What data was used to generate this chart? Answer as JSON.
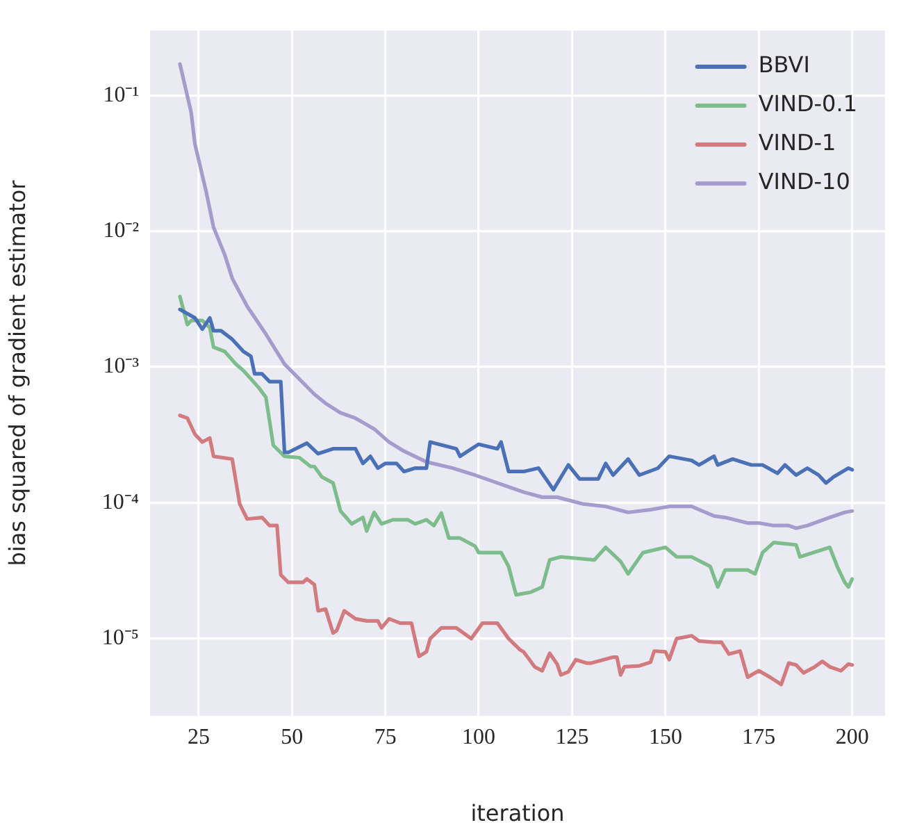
{
  "chart_data": {
    "type": "line",
    "xlabel": "iteration",
    "ylabel": "bias squared of gradient estimator",
    "log": "y",
    "grid": true,
    "legend": "top right",
    "line_style": "solid",
    "xlim": [
      12,
      208.8
    ],
    "xticks": [
      25,
      50,
      75,
      100,
      125,
      150,
      175,
      200
    ],
    "ylim": [
      2.7e-06,
      0.3
    ],
    "yticks": [
      {
        "value": 1e-05,
        "label": "10⁻⁵"
      },
      {
        "value": 0.0001,
        "label": "10⁻⁴"
      },
      {
        "value": 0.001,
        "label": "10⁻³"
      },
      {
        "value": 0.01,
        "label": "10⁻²"
      },
      {
        "value": 0.1,
        "label": "10⁻¹"
      }
    ],
    "series": [
      {
        "name": "BBVI",
        "color": "#4a70b5",
        "x": [
          20,
          24,
          26,
          28,
          29,
          31,
          34,
          37,
          39,
          40,
          42,
          44,
          46,
          47,
          48,
          49,
          54,
          57,
          61,
          67,
          69,
          71,
          73,
          75,
          78,
          80,
          83,
          86,
          87,
          94,
          95,
          100,
          105,
          106,
          108,
          112,
          116,
          120,
          124,
          127,
          132,
          134,
          136,
          140,
          143,
          148,
          151,
          157,
          159,
          163,
          164,
          168,
          173,
          176,
          180,
          182,
          185,
          188,
          191,
          193,
          195,
          199,
          200
        ],
        "values": [
          0.00265,
          0.0023,
          0.0019,
          0.0023,
          0.00185,
          0.00185,
          0.0016,
          0.0013,
          0.0012,
          0.00089,
          0.00089,
          0.00078,
          0.00078,
          0.00078,
          0.000235,
          0.000235,
          0.000275,
          0.00023,
          0.00025,
          0.00025,
          0.000195,
          0.00022,
          0.00018,
          0.000195,
          0.000195,
          0.00017,
          0.00018,
          0.00018,
          0.00028,
          0.00025,
          0.00022,
          0.00027,
          0.00025,
          0.00028,
          0.00017,
          0.00017,
          0.00018,
          0.000125,
          0.00019,
          0.00015,
          0.00015,
          0.000195,
          0.00016,
          0.00021,
          0.00016,
          0.00018,
          0.00022,
          0.000205,
          0.00019,
          0.00022,
          0.00019,
          0.00021,
          0.00019,
          0.00019,
          0.000165,
          0.00019,
          0.00016,
          0.00018,
          0.00016,
          0.00014,
          0.000155,
          0.00018,
          0.000175
        ]
      },
      {
        "name": "VIND-0.1",
        "color": "#7dbd8c",
        "x": [
          20,
          22,
          23,
          26,
          28,
          29,
          32,
          35,
          37,
          41,
          43,
          44,
          45,
          48,
          52,
          55,
          56,
          58,
          61,
          63,
          66,
          69,
          70,
          72,
          74,
          77,
          80,
          81,
          83,
          86,
          88,
          90,
          92,
          95,
          99,
          100,
          106,
          108,
          110,
          114,
          117,
          119,
          122,
          131,
          134,
          138,
          140,
          144,
          150,
          153,
          157,
          162,
          164,
          166,
          172,
          174,
          176,
          179,
          185,
          186,
          194,
          196,
          198,
          199,
          200
        ],
        "values": [
          0.0033,
          0.00205,
          0.0022,
          0.0022,
          0.00195,
          0.0014,
          0.0013,
          0.00105,
          0.00094,
          0.00071,
          0.0006,
          0.0004,
          0.000265,
          0.00022,
          0.000215,
          0.000185,
          0.000185,
          0.000155,
          0.00014,
          8.7e-05,
          7e-05,
          7.8e-05,
          6.2e-05,
          8.5e-05,
          7e-05,
          7.5e-05,
          7.5e-05,
          7.5e-05,
          7e-05,
          7.5e-05,
          6.8e-05,
          8.4e-05,
          5.5e-05,
          5.5e-05,
          4.8e-05,
          4.3e-05,
          4.3e-05,
          3.4e-05,
          2.1e-05,
          2.2e-05,
          2.4e-05,
          3.8e-05,
          4e-05,
          3.8e-05,
          4.7e-05,
          3.7e-05,
          3e-05,
          4.3e-05,
          4.7e-05,
          4e-05,
          4e-05,
          3.4e-05,
          2.4e-05,
          3.2e-05,
          3.2e-05,
          3e-05,
          4.3e-05,
          5.1e-05,
          4.9e-05,
          4e-05,
          4.7e-05,
          3.4e-05,
          2.6e-05,
          2.4e-05,
          2.75e-05
        ]
      },
      {
        "name": "VIND-1",
        "color": "#d27b7f",
        "x": [
          20,
          22,
          24,
          26,
          28,
          29,
          34,
          36,
          38,
          42,
          44,
          46,
          47,
          49,
          53,
          54,
          56,
          57,
          59,
          61,
          62,
          64,
          67,
          70,
          73,
          74,
          76,
          79,
          82,
          84,
          86,
          87,
          90,
          94,
          98,
          101,
          105,
          108,
          111,
          112,
          115,
          117,
          119,
          121,
          122,
          124,
          126,
          129,
          130,
          136,
          137,
          138,
          139,
          143,
          146,
          147,
          150,
          151,
          153,
          157,
          159,
          163,
          165,
          167,
          170,
          172,
          175,
          178,
          181,
          183,
          185,
          187,
          190,
          192,
          194,
          197,
          199,
          200
        ],
        "values": [
          0.00044,
          0.00042,
          0.00032,
          0.00028,
          0.0003,
          0.00022,
          0.00021,
          9.8e-05,
          7.6e-05,
          7.8e-05,
          6.8e-05,
          6.8e-05,
          2.95e-05,
          2.6e-05,
          2.6e-05,
          2.75e-05,
          2.5e-05,
          1.6e-05,
          1.65e-05,
          1.1e-05,
          1.15e-05,
          1.6e-05,
          1.4e-05,
          1.35e-05,
          1.35e-05,
          1.2e-05,
          1.4e-05,
          1.3e-05,
          1.3e-05,
          7.4e-06,
          8e-06,
          1e-05,
          1.2e-05,
          1.2e-05,
          1e-05,
          1.3e-05,
          1.3e-05,
          1e-05,
          8.3e-06,
          8e-06,
          6.2e-06,
          5.8e-06,
          7.8e-06,
          6.5e-06,
          5.4e-06,
          5.7e-06,
          7e-06,
          6.6e-06,
          6.6e-06,
          7.3e-06,
          7.3e-06,
          5.4e-06,
          6.2e-06,
          6.3e-06,
          6.7e-06,
          8.1e-06,
          8e-06,
          7e-06,
          1e-05,
          1.05e-05,
          9.6e-06,
          9.4e-06,
          9.4e-06,
          7.7e-06,
          8.1e-06,
          5.2e-06,
          5.8e-06,
          5.2e-06,
          4.6e-06,
          6.6e-06,
          6.4e-06,
          5.6e-06,
          6.2e-06,
          6.8e-06,
          6.2e-06,
          5.8e-06,
          6.5e-06,
          6.4e-06
        ]
      },
      {
        "name": "VIND-10",
        "color": "#a69bcd",
        "x": [
          20,
          23,
          24,
          27,
          29,
          32,
          34,
          38,
          43,
          48,
          56,
          59,
          63,
          67,
          72,
          76,
          80,
          86,
          93,
          99,
          105,
          112,
          117,
          121,
          128,
          134,
          140,
          146,
          151,
          157,
          163,
          166,
          172,
          175,
          179,
          183,
          185,
          188,
          194,
          198,
          200
        ],
        "values": [
          0.17,
          0.075,
          0.044,
          0.0197,
          0.0107,
          0.0067,
          0.0045,
          0.0028,
          0.00175,
          0.00105,
          0.00063,
          0.00054,
          0.00046,
          0.00042,
          0.00035,
          0.00028,
          0.00024,
          0.0002,
          0.00018,
          0.00016,
          0.00014,
          0.00012,
          0.00011,
          0.00011,
          9.8e-05,
          9.4e-05,
          8.5e-05,
          8.9e-05,
          9.4e-05,
          9.4e-05,
          8e-05,
          7.8e-05,
          7.1e-05,
          7.1e-05,
          6.8e-05,
          6.8e-05,
          6.5e-05,
          6.8e-05,
          7.8e-05,
          8.5e-05,
          8.7e-05
        ]
      }
    ]
  }
}
